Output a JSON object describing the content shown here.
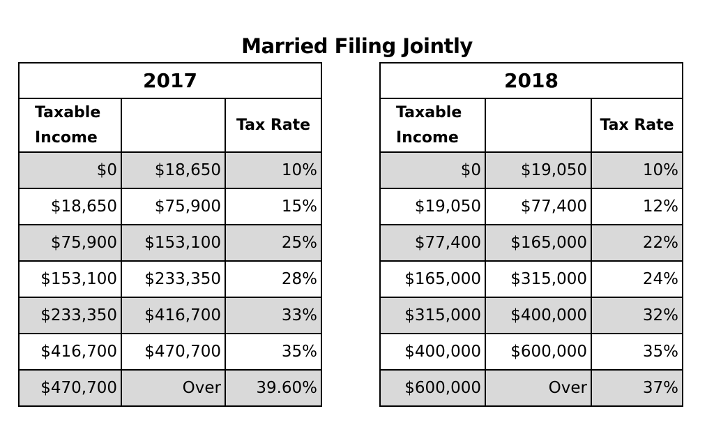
{
  "title": "Married Filing Jointly",
  "headers": {
    "taxable_income": "Taxable Income",
    "blank": "",
    "tax_rate": "Tax Rate"
  },
  "tables": [
    {
      "year": "2017",
      "rows": [
        {
          "from": "$0",
          "to": "$18,650",
          "rate": "10%"
        },
        {
          "from": "$18,650",
          "to": "$75,900",
          "rate": "15%"
        },
        {
          "from": "$75,900",
          "to": "$153,100",
          "rate": "25%"
        },
        {
          "from": "$153,100",
          "to": "$233,350",
          "rate": "28%"
        },
        {
          "from": "$233,350",
          "to": "$416,700",
          "rate": "33%"
        },
        {
          "from": "$416,700",
          "to": "$470,700",
          "rate": "35%"
        },
        {
          "from": "$470,700",
          "to": "Over",
          "rate": "39.60%"
        }
      ]
    },
    {
      "year": "2018",
      "rows": [
        {
          "from": "$0",
          "to": "$19,050",
          "rate": "10%"
        },
        {
          "from": "$19,050",
          "to": "$77,400",
          "rate": "12%"
        },
        {
          "from": "$77,400",
          "to": "$165,000",
          "rate": "22%"
        },
        {
          "from": "$165,000",
          "to": "$315,000",
          "rate": "24%"
        },
        {
          "from": "$315,000",
          "to": "$400,000",
          "rate": "32%"
        },
        {
          "from": "$400,000",
          "to": "$600,000",
          "rate": "35%"
        },
        {
          "from": "$600,000",
          "to": "Over",
          "rate": "37%"
        }
      ]
    }
  ],
  "colors": {
    "shaded_row": "#d9d9d9",
    "border": "#000000",
    "background": "#ffffff"
  }
}
